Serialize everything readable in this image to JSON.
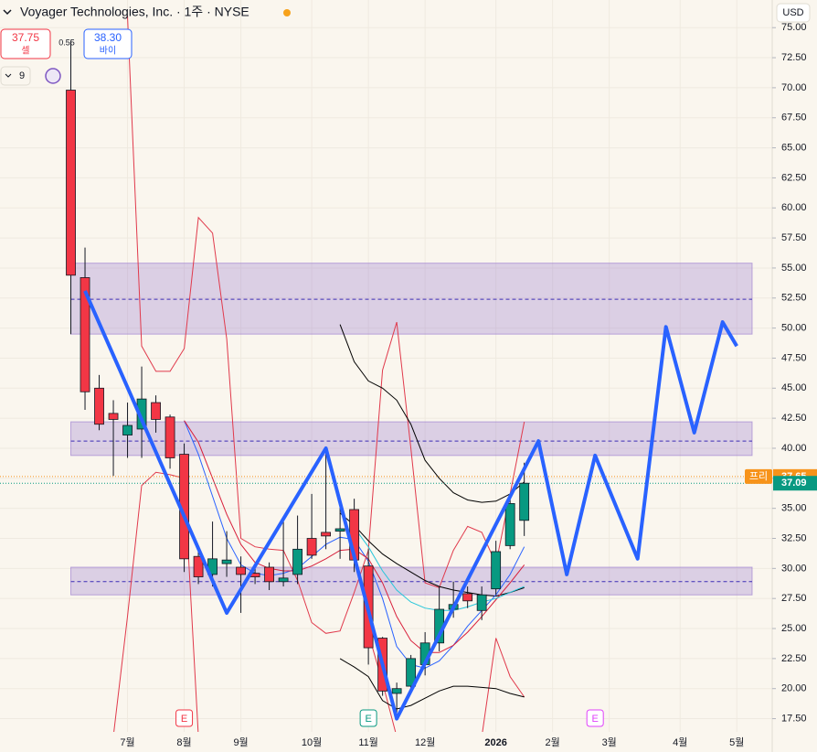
{
  "header": {
    "title": "Voyager Technologies, Inc. · 1주 · NYSE",
    "currency": "USD",
    "indicator_count": "9",
    "sell": {
      "value": 37.75,
      "label": "37.75",
      "name": "셀"
    },
    "spread": "0.55",
    "buy": {
      "value": 38.3,
      "label": "38.30",
      "name": "바이"
    }
  },
  "chart_data": {
    "type": "candlestick",
    "up_color": "#089981",
    "down_color": "#f23645",
    "x": [
      0,
      1,
      2,
      3,
      4,
      5,
      6,
      7,
      8,
      9,
      10,
      11,
      12,
      13,
      14,
      15,
      16,
      17,
      18,
      19,
      20,
      21,
      22,
      23,
      24,
      25,
      26,
      27,
      28,
      29,
      30,
      31,
      32
    ],
    "open": [
      69.8,
      54.2,
      45.0,
      42.9,
      41.1,
      41.6,
      43.8,
      42.6,
      39.5,
      31.0,
      29.5,
      30.4,
      30.1,
      29.6,
      30.1,
      28.9,
      29.5,
      32.5,
      33.0,
      33.1,
      34.9,
      30.2,
      24.2,
      19.6,
      20.2,
      22.0,
      23.8,
      26.6,
      27.9,
      26.5,
      28.3,
      31.9,
      34.0
    ],
    "high": [
      73.9,
      56.7,
      46.1,
      44.0,
      43.8,
      46.8,
      44.4,
      42.8,
      40.4,
      31.7,
      33.9,
      33.1,
      31.0,
      30.3,
      30.5,
      33.9,
      34.4,
      36.2,
      40.0,
      35.8,
      35.8,
      31.6,
      24.3,
      20.5,
      22.8,
      24.7,
      28.5,
      28.9,
      28.5,
      28.5,
      32.3,
      36.2,
      38.8
    ],
    "low": [
      49.5,
      43.2,
      41.5,
      37.7,
      39.2,
      39.2,
      41.3,
      38.3,
      29.7,
      28.7,
      28.5,
      29.3,
      26.3,
      28.7,
      28.2,
      28.5,
      28.7,
      30.8,
      31.6,
      30.8,
      29.7,
      22.0,
      19.4,
      18.0,
      19.8,
      21.1,
      23.1,
      25.9,
      26.7,
      25.7,
      27.8,
      31.6,
      32.7
    ],
    "close": [
      54.4,
      44.7,
      42.0,
      42.4,
      41.9,
      44.1,
      42.4,
      39.2,
      30.8,
      29.3,
      30.8,
      30.7,
      29.5,
      29.3,
      28.9,
      29.2,
      31.6,
      31.1,
      32.7,
      33.3,
      30.7,
      23.4,
      19.8,
      20.0,
      22.5,
      23.8,
      26.6,
      27.0,
      27.3,
      27.8,
      31.4,
      35.4,
      37.09
    ],
    "overlays": [
      {
        "color": "#e0394b",
        "width": 1,
        "values": [
          null,
          null,
          null,
          null,
          76,
          48.5,
          46.4,
          46.4,
          48.3,
          59.2,
          57.9,
          49.1,
          32.5,
          31.8,
          31.6,
          31.5,
          29.0,
          25.5,
          24.6,
          24.8,
          28.0,
          31.5,
          46.5,
          50.5,
          40.0,
          28.8,
          28.4,
          31.5,
          33.5,
          33.0,
          30.4,
          36.2,
          42.2
        ]
      },
      {
        "color": "#e0394b",
        "width": 1,
        "values": [
          null,
          null,
          null,
          16.0,
          26.0,
          36.9,
          38.0,
          37.8,
          37.5,
          16.0,
          null,
          null,
          null,
          null,
          null,
          null,
          null,
          null,
          null,
          null,
          null,
          24.6,
          20.5,
          16.0,
          null,
          null,
          null,
          null,
          null,
          16.0,
          24.2,
          21.0,
          19.3
        ]
      },
      {
        "color": "#000000",
        "width": 1,
        "values": [
          null,
          null,
          null,
          null,
          null,
          null,
          null,
          null,
          null,
          null,
          null,
          null,
          null,
          null,
          null,
          null,
          null,
          null,
          null,
          50.3,
          47.2,
          45.6,
          45.0,
          44.0,
          42.0,
          39.0,
          37.5,
          36.3,
          35.7,
          35.5,
          35.6,
          36.2,
          37.2
        ]
      },
      {
        "color": "#000000",
        "width": 1,
        "values": [
          null,
          null,
          null,
          null,
          null,
          null,
          null,
          null,
          null,
          null,
          null,
          null,
          null,
          null,
          null,
          null,
          null,
          null,
          null,
          34.6,
          33.6,
          32.3,
          31.2,
          30.4,
          29.7,
          29.0,
          28.5,
          28.2,
          28.0,
          27.8,
          27.7,
          28.0,
          28.4
        ]
      },
      {
        "color": "#000000",
        "width": 1,
        "values": [
          null,
          null,
          null,
          null,
          null,
          null,
          null,
          null,
          null,
          null,
          null,
          null,
          null,
          null,
          null,
          null,
          null,
          null,
          null,
          22.5,
          21.8,
          21.0,
          19.0,
          18.3,
          18.6,
          19.2,
          19.8,
          20.2,
          20.2,
          20.1,
          20.0,
          19.6,
          19.3
        ]
      },
      {
        "color": "#2962ff",
        "width": 1,
        "values": [
          null,
          null,
          null,
          null,
          null,
          null,
          null,
          null,
          42.3,
          39.5,
          36.0,
          32.5,
          30.3,
          29.6,
          29.4,
          29.6,
          30.0,
          31.0,
          32.0,
          32.6,
          32.4,
          30.6,
          27.5,
          23.5,
          22.0,
          21.7,
          22.3,
          23.6,
          25.2,
          26.5,
          27.8,
          29.5,
          31.8
        ]
      },
      {
        "color": "#d81e3a",
        "width": 1,
        "values": [
          null,
          null,
          null,
          null,
          null,
          null,
          null,
          null,
          42.3,
          40.5,
          37.5,
          34.5,
          32.0,
          30.5,
          30.0,
          29.8,
          29.8,
          30.2,
          30.8,
          31.5,
          31.6,
          30.8,
          28.8,
          26.0,
          24.0,
          23.0,
          23.0,
          23.6,
          24.7,
          26.0,
          27.4,
          28.8,
          30.3
        ]
      },
      {
        "color": "#26c6da",
        "width": 1,
        "values": [
          null,
          null,
          null,
          null,
          null,
          null,
          null,
          null,
          null,
          null,
          null,
          null,
          null,
          null,
          null,
          null,
          null,
          null,
          null,
          null,
          33.4,
          31.8,
          29.8,
          28.2,
          27.2,
          26.7,
          26.5,
          26.5,
          26.8,
          27.2,
          27.5,
          28.0,
          28.5
        ]
      }
    ],
    "projection": {
      "color": "#2962ff",
      "x": [
        1,
        11,
        18,
        23,
        33,
        35,
        37,
        40,
        42,
        44,
        46,
        47
      ],
      "values": [
        53.1,
        26.3,
        40.0,
        17.5,
        40.6,
        29.5,
        39.4,
        30.8,
        50.1,
        41.3,
        50.5,
        48.5
      ]
    },
    "zones": [
      {
        "top": 55.4,
        "bottom": 49.5,
        "mid": 52.4
      },
      {
        "top": 42.2,
        "bottom": 39.4,
        "mid": 40.6
      },
      {
        "top": 30.1,
        "bottom": 27.8,
        "mid": 28.9
      }
    ],
    "zone_color": "#9575cd",
    "events": [
      {
        "x": 8,
        "label": "E",
        "color": "#f23645"
      },
      {
        "x": 21,
        "label": "E",
        "color": "#089981"
      },
      {
        "x": 37,
        "label": "E",
        "color": "#e040fb"
      }
    ],
    "premarket": {
      "label": "프리",
      "value": 37.65,
      "color": "#f7931a"
    },
    "last_price": {
      "value": 37.09,
      "color": "#089981"
    },
    "xlim": [
      -5,
      49.5
    ],
    "xticks": [
      {
        "value": 4,
        "label": "7월"
      },
      {
        "value": 8,
        "label": "8월"
      },
      {
        "value": 12,
        "label": "9월"
      },
      {
        "value": 17,
        "label": "10월"
      },
      {
        "value": 21,
        "label": "11월"
      },
      {
        "value": 25,
        "label": "12월"
      },
      {
        "value": 30,
        "label": "2026"
      },
      {
        "value": 34,
        "label": "2월"
      },
      {
        "value": 38,
        "label": "3월"
      },
      {
        "value": 43,
        "label": "4월"
      },
      {
        "value": 47,
        "label": "5월"
      }
    ],
    "ylim": [
      16.4,
      77.3
    ],
    "yticks": [
      {
        "value": 17.5,
        "label": "17.50"
      },
      {
        "value": 20,
        "label": "20.00"
      },
      {
        "value": 22.5,
        "label": "22.50"
      },
      {
        "value": 25,
        "label": "25.00"
      },
      {
        "value": 27.5,
        "label": "27.50"
      },
      {
        "value": 30,
        "label": "30.00"
      },
      {
        "value": 32.5,
        "label": "32.50"
      },
      {
        "value": 35,
        "label": "35.00"
      },
      {
        "value": 37.5,
        "label": "37.50"
      },
      {
        "value": 40,
        "label": "40.00"
      },
      {
        "value": 42.5,
        "label": "42.50"
      },
      {
        "value": 45,
        "label": "45.00"
      },
      {
        "value": 47.5,
        "label": "47.50"
      },
      {
        "value": 50,
        "label": "50.00"
      },
      {
        "value": 52.5,
        "label": "52.50"
      },
      {
        "value": 55,
        "label": "55.00"
      },
      {
        "value": 57.5,
        "label": "57.50"
      },
      {
        "value": 60,
        "label": "60.00"
      },
      {
        "value": 62.5,
        "label": "62.50"
      },
      {
        "value": 65,
        "label": "65.00"
      },
      {
        "value": 67.5,
        "label": "67.50"
      },
      {
        "value": 70,
        "label": "70.00"
      },
      {
        "value": 72.5,
        "label": "72.50"
      },
      {
        "value": 75,
        "label": "75.00"
      }
    ],
    "grid": true
  }
}
